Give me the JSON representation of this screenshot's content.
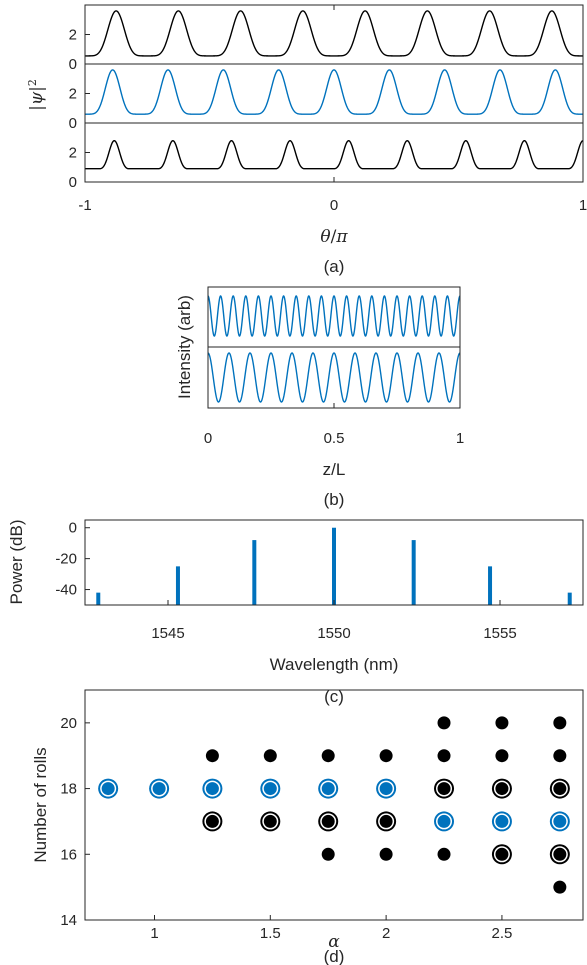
{
  "chart_data": [
    {
      "type": "line",
      "panel_label": "(a)",
      "xlabel_var": "θ",
      "xlabel_sep": "/",
      "xlabel_const": "π",
      "ylabel_var": "|ψ|",
      "ylabel_sup": "2",
      "xlim": [
        -1,
        1
      ],
      "xticks": [
        "-1",
        "0",
        "1"
      ],
      "subplots": [
        {
          "ylim": [
            0,
            4
          ],
          "yticks": [
            "0",
            "2"
          ],
          "color": "#000000",
          "rolls": 16,
          "peak": 3.6,
          "base": 0.55,
          "shape": "single"
        },
        {
          "ylim": [
            0,
            4
          ],
          "yticks": [
            "0",
            "2"
          ],
          "color": "#0072BD",
          "rolls": 18,
          "peak": 3.6,
          "base": 0.6,
          "shape": "single"
        },
        {
          "ylim": [
            0,
            4
          ],
          "yticks": [
            "0",
            "2"
          ],
          "color": "#000000",
          "rolls": 17,
          "peak": 2.8,
          "base": 0.9,
          "shape": "double"
        }
      ]
    },
    {
      "type": "line",
      "panel_label": "(b)",
      "xlabel": "z/L",
      "ylabel": "Intensity (arb)",
      "xlim": [
        0,
        1
      ],
      "xticks": [
        "0",
        "0.5",
        "1"
      ],
      "subplots": [
        {
          "color": "#0072BD",
          "cycles": 20
        },
        {
          "color": "#0072BD",
          "cycles": 12
        }
      ]
    },
    {
      "type": "bar",
      "panel_label": "(c)",
      "xlabel": "Wavelength (nm)",
      "ylabel": "Power (dB)",
      "xlim": [
        1542.5,
        1557.5
      ],
      "ylim": [
        -50,
        5
      ],
      "xticks": [
        "1545",
        "1550",
        "1555"
      ],
      "yticks": [
        "0",
        "-20",
        "-40"
      ],
      "color": "#0072BD",
      "x": [
        1542.9,
        1545.3,
        1547.6,
        1550.0,
        1552.4,
        1554.7,
        1557.1
      ],
      "values": [
        -42,
        -25,
        -8,
        0,
        -8,
        -25,
        -42
      ]
    },
    {
      "type": "scatter",
      "panel_label": "(d)",
      "xlabel": "α",
      "ylabel": "Number of rolls",
      "xlim": [
        0.7,
        2.85
      ],
      "ylim": [
        14,
        21
      ],
      "xticks": [
        "1",
        "1.5",
        "2",
        "2.5"
      ],
      "yticks": [
        "14",
        "16",
        "18",
        "20"
      ],
      "series": [
        {
          "marker": "filled-black",
          "points": [
            [
              1.25,
              19
            ],
            [
              1.5,
              19
            ],
            [
              1.75,
              19
            ],
            [
              2,
              19
            ],
            [
              2.25,
              20
            ],
            [
              2.25,
              19
            ],
            [
              2.5,
              20
            ],
            [
              2.5,
              19
            ],
            [
              2.75,
              20
            ],
            [
              2.75,
              19
            ],
            [
              1.75,
              16
            ],
            [
              2,
              16
            ],
            [
              2.25,
              16
            ],
            [
              2.75,
              15
            ]
          ]
        },
        {
          "marker": "black-ring",
          "points": [
            [
              1.25,
              17
            ],
            [
              1.5,
              17
            ],
            [
              1.75,
              17
            ],
            [
              2,
              17
            ],
            [
              2.25,
              18
            ],
            [
              2.5,
              18
            ],
            [
              2.5,
              16
            ],
            [
              2.75,
              18
            ],
            [
              2.75,
              16
            ]
          ]
        },
        {
          "marker": "blue-ring",
          "points": [
            [
              0.8,
              18
            ],
            [
              1.02,
              18
            ],
            [
              1.25,
              18
            ],
            [
              1.5,
              18
            ],
            [
              1.75,
              18
            ],
            [
              2,
              18
            ],
            [
              2.25,
              17
            ],
            [
              2.5,
              17
            ],
            [
              2.75,
              17
            ]
          ]
        }
      ]
    }
  ]
}
